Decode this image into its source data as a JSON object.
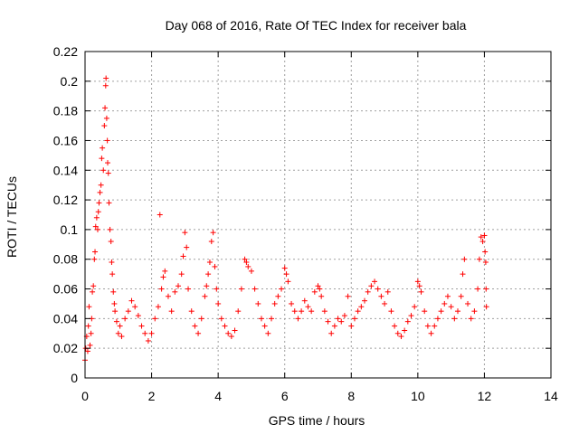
{
  "chart_data": {
    "type": "scatter",
    "title": "Day 068 of 2016, Rate Of TEC Index for receiver bala",
    "xlabel": "GPS time / hours",
    "ylabel": "ROTI / TECUs",
    "xlim": [
      0,
      14
    ],
    "ylim": [
      0,
      0.22
    ],
    "x_ticks": [
      "0",
      "2",
      "4",
      "6",
      "8",
      "10",
      "12",
      "14"
    ],
    "y_ticks": [
      "0",
      "0.02",
      "0.04",
      "0.06",
      "0.08",
      "0.1",
      "0.12",
      "0.14",
      "0.16",
      "0.18",
      "0.2",
      "0.22"
    ],
    "grid": true,
    "marker": "+",
    "color": "#ff0000",
    "series": [
      {
        "points": [
          [
            0.0,
            0.012
          ],
          [
            0.02,
            0.02
          ],
          [
            0.05,
            0.028
          ],
          [
            0.08,
            0.018
          ],
          [
            0.1,
            0.035
          ],
          [
            0.12,
            0.048
          ],
          [
            0.15,
            0.022
          ],
          [
            0.18,
            0.03
          ],
          [
            0.2,
            0.04
          ],
          [
            0.22,
            0.058
          ],
          [
            0.25,
            0.062
          ],
          [
            0.28,
            0.08
          ],
          [
            0.3,
            0.085
          ],
          [
            0.32,
            0.102
          ],
          [
            0.35,
            0.108
          ],
          [
            0.38,
            0.1
          ],
          [
            0.4,
            0.112
          ],
          [
            0.42,
            0.118
          ],
          [
            0.45,
            0.125
          ],
          [
            0.48,
            0.13
          ],
          [
            0.5,
            0.148
          ],
          [
            0.52,
            0.155
          ],
          [
            0.55,
            0.14
          ],
          [
            0.58,
            0.17
          ],
          [
            0.6,
            0.182
          ],
          [
            0.62,
            0.197
          ],
          [
            0.63,
            0.202
          ],
          [
            0.65,
            0.175
          ],
          [
            0.67,
            0.16
          ],
          [
            0.68,
            0.145
          ],
          [
            0.7,
            0.138
          ],
          [
            0.72,
            0.118
          ],
          [
            0.75,
            0.1
          ],
          [
            0.78,
            0.092
          ],
          [
            0.8,
            0.078
          ],
          [
            0.82,
            0.07
          ],
          [
            0.85,
            0.058
          ],
          [
            0.88,
            0.05
          ],
          [
            0.9,
            0.045
          ],
          [
            0.95,
            0.038
          ],
          [
            1.0,
            0.03
          ],
          [
            1.05,
            0.035
          ],
          [
            1.1,
            0.028
          ],
          [
            1.2,
            0.04
          ],
          [
            1.3,
            0.045
          ],
          [
            1.4,
            0.052
          ],
          [
            1.5,
            0.048
          ],
          [
            1.6,
            0.042
          ],
          [
            1.7,
            0.035
          ],
          [
            1.8,
            0.03
          ],
          [
            1.9,
            0.025
          ],
          [
            2.0,
            0.03
          ],
          [
            2.1,
            0.04
          ],
          [
            2.2,
            0.048
          ],
          [
            2.25,
            0.11
          ],
          [
            2.3,
            0.06
          ],
          [
            2.35,
            0.068
          ],
          [
            2.4,
            0.072
          ],
          [
            2.5,
            0.055
          ],
          [
            2.6,
            0.045
          ],
          [
            2.7,
            0.058
          ],
          [
            2.8,
            0.062
          ],
          [
            2.9,
            0.07
          ],
          [
            2.95,
            0.082
          ],
          [
            3.0,
            0.098
          ],
          [
            3.05,
            0.088
          ],
          [
            3.1,
            0.06
          ],
          [
            3.2,
            0.045
          ],
          [
            3.3,
            0.035
          ],
          [
            3.4,
            0.03
          ],
          [
            3.5,
            0.04
          ],
          [
            3.6,
            0.055
          ],
          [
            3.65,
            0.062
          ],
          [
            3.7,
            0.07
          ],
          [
            3.75,
            0.078
          ],
          [
            3.8,
            0.092
          ],
          [
            3.85,
            0.098
          ],
          [
            3.9,
            0.075
          ],
          [
            3.95,
            0.06
          ],
          [
            4.0,
            0.05
          ],
          [
            4.1,
            0.04
          ],
          [
            4.2,
            0.035
          ],
          [
            4.3,
            0.03
          ],
          [
            4.4,
            0.028
          ],
          [
            4.5,
            0.032
          ],
          [
            4.6,
            0.045
          ],
          [
            4.7,
            0.06
          ],
          [
            4.8,
            0.08
          ],
          [
            4.85,
            0.078
          ],
          [
            4.9,
            0.075
          ],
          [
            5.0,
            0.072
          ],
          [
            5.1,
            0.06
          ],
          [
            5.2,
            0.05
          ],
          [
            5.3,
            0.04
          ],
          [
            5.4,
            0.035
          ],
          [
            5.5,
            0.03
          ],
          [
            5.6,
            0.04
          ],
          [
            5.7,
            0.05
          ],
          [
            5.8,
            0.055
          ],
          [
            5.9,
            0.06
          ],
          [
            6.0,
            0.074
          ],
          [
            6.05,
            0.07
          ],
          [
            6.1,
            0.065
          ],
          [
            6.2,
            0.05
          ],
          [
            6.3,
            0.045
          ],
          [
            6.4,
            0.04
          ],
          [
            6.5,
            0.045
          ],
          [
            6.6,
            0.052
          ],
          [
            6.7,
            0.048
          ],
          [
            6.8,
            0.045
          ],
          [
            6.9,
            0.058
          ],
          [
            7.0,
            0.062
          ],
          [
            7.05,
            0.06
          ],
          [
            7.1,
            0.055
          ],
          [
            7.2,
            0.045
          ],
          [
            7.3,
            0.038
          ],
          [
            7.4,
            0.03
          ],
          [
            7.5,
            0.035
          ],
          [
            7.6,
            0.04
          ],
          [
            7.7,
            0.038
          ],
          [
            7.8,
            0.042
          ],
          [
            7.9,
            0.055
          ],
          [
            8.0,
            0.035
          ],
          [
            8.1,
            0.04
          ],
          [
            8.2,
            0.045
          ],
          [
            8.3,
            0.048
          ],
          [
            8.4,
            0.052
          ],
          [
            8.5,
            0.058
          ],
          [
            8.6,
            0.062
          ],
          [
            8.7,
            0.065
          ],
          [
            8.8,
            0.06
          ],
          [
            8.9,
            0.055
          ],
          [
            9.0,
            0.05
          ],
          [
            9.1,
            0.058
          ],
          [
            9.2,
            0.045
          ],
          [
            9.3,
            0.035
          ],
          [
            9.4,
            0.03
          ],
          [
            9.5,
            0.028
          ],
          [
            9.6,
            0.032
          ],
          [
            9.7,
            0.038
          ],
          [
            9.8,
            0.042
          ],
          [
            9.9,
            0.048
          ],
          [
            10.0,
            0.065
          ],
          [
            10.05,
            0.062
          ],
          [
            10.1,
            0.058
          ],
          [
            10.2,
            0.045
          ],
          [
            10.3,
            0.035
          ],
          [
            10.4,
            0.03
          ],
          [
            10.5,
            0.035
          ],
          [
            10.6,
            0.04
          ],
          [
            10.7,
            0.045
          ],
          [
            10.8,
            0.05
          ],
          [
            10.9,
            0.055
          ],
          [
            11.0,
            0.048
          ],
          [
            11.1,
            0.04
          ],
          [
            11.2,
            0.045
          ],
          [
            11.3,
            0.055
          ],
          [
            11.35,
            0.07
          ],
          [
            11.4,
            0.08
          ],
          [
            11.5,
            0.05
          ],
          [
            11.6,
            0.04
          ],
          [
            11.7,
            0.045
          ],
          [
            11.8,
            0.06
          ],
          [
            11.85,
            0.08
          ],
          [
            11.9,
            0.095
          ],
          [
            11.95,
            0.092
          ],
          [
            12.0,
            0.096
          ],
          [
            12.02,
            0.085
          ],
          [
            12.04,
            0.078
          ],
          [
            12.05,
            0.06
          ],
          [
            12.06,
            0.048
          ]
        ]
      }
    ]
  }
}
